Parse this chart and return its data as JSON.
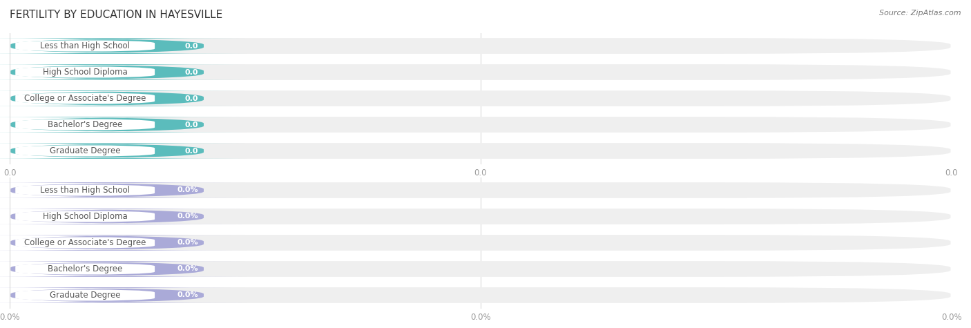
{
  "title": "FERTILITY BY EDUCATION IN HAYESVILLE",
  "source": "Source: ZipAtlas.com",
  "categories": [
    "Less than High School",
    "High School Diploma",
    "College or Associate's Degree",
    "Bachelor's Degree",
    "Graduate Degree"
  ],
  "top_values": [
    0.0,
    0.0,
    0.0,
    0.0,
    0.0
  ],
  "bottom_values": [
    0.0,
    0.0,
    0.0,
    0.0,
    0.0
  ],
  "top_color": "#5BBCBC",
  "bottom_color": "#AAAAD8",
  "bar_bg_color": "#EFEFEF",
  "background_color": "#FFFFFF",
  "title_fontsize": 11,
  "label_fontsize": 8.5,
  "value_fontsize": 8,
  "tick_fontsize": 8.5,
  "source_fontsize": 8
}
